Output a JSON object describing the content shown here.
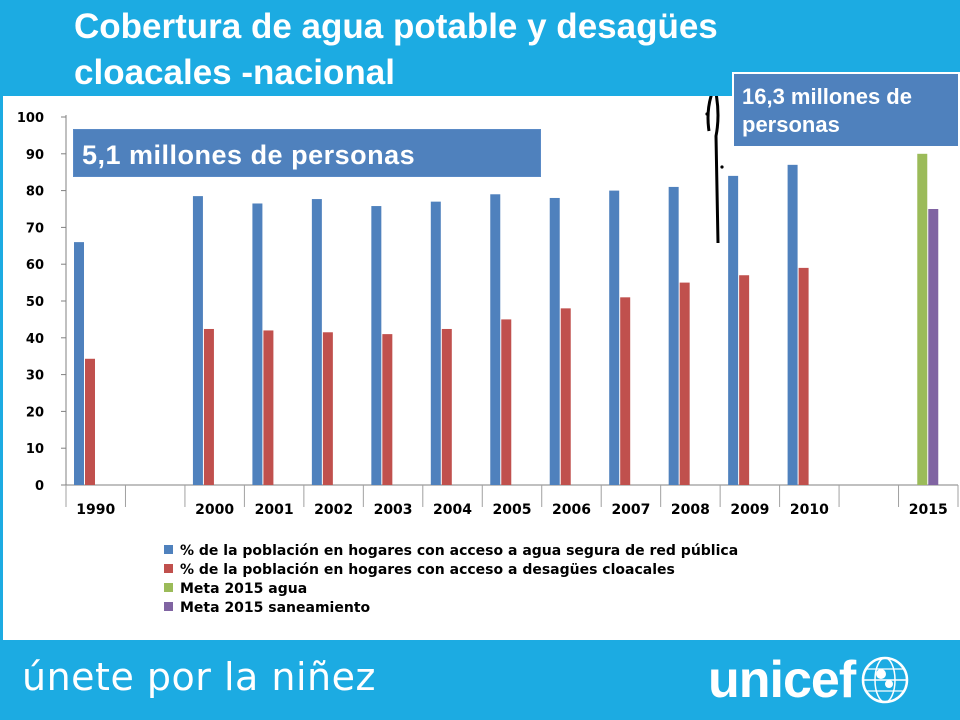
{
  "slide": {
    "title": "Cobertura de agua potable y desagües cloacales -nacional",
    "tagline": "únete por la niñez",
    "logo_text": "unicef",
    "colors": {
      "brand": "#1cabe2",
      "callout": "#4f81bd"
    }
  },
  "callouts": {
    "left": "5,1 millones de personas",
    "right": "16,3 millones de personas"
  },
  "chart_data": {
    "type": "bar",
    "categories": [
      "1990",
      "",
      "2000",
      "2001",
      "2002",
      "2003",
      "2004",
      "2005",
      "2006",
      "2007",
      "2008",
      "2009",
      "2010",
      "",
      "2015"
    ],
    "series": [
      {
        "name": "% de la población en hogares con acceso a agua segura de red pública",
        "color": "#4f81bd",
        "values": [
          66,
          null,
          78.5,
          76.5,
          77.7,
          75.8,
          77,
          79,
          78,
          80,
          81,
          84,
          87,
          null,
          null
        ]
      },
      {
        "name": "% de la población en hogares con acceso a desagües cloacales",
        "color": "#c0504d",
        "values": [
          34.3,
          null,
          42.4,
          42,
          41.5,
          41,
          42.4,
          45,
          48,
          51,
          55,
          57,
          59,
          null,
          null
        ]
      },
      {
        "name": "Meta 2015 agua",
        "color": "#9bbb59",
        "values": [
          null,
          null,
          null,
          null,
          null,
          null,
          null,
          null,
          null,
          null,
          null,
          null,
          null,
          null,
          90
        ]
      },
      {
        "name": "Meta 2015 saneamiento",
        "color": "#8064a2",
        "values": [
          null,
          null,
          null,
          null,
          null,
          null,
          null,
          null,
          null,
          null,
          null,
          null,
          null,
          null,
          75
        ]
      }
    ],
    "yticks": [
      "0",
      "10",
      "20",
      "30",
      "40",
      "50",
      "60",
      "70",
      "80",
      "90",
      "100"
    ],
    "ylim": [
      0,
      100
    ],
    "legend_position": "bottom",
    "grid": false
  }
}
